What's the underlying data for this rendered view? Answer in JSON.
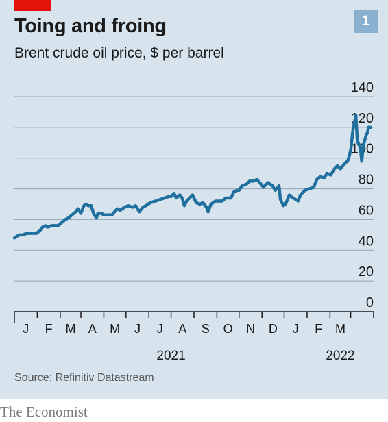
{
  "header": {
    "title": "Toing and froing",
    "subtitle": "Brent crude oil price, $ per barrel",
    "chart_number": "1"
  },
  "footer": {
    "source": "Source: Refinitiv Datastream",
    "brand": "The Economist"
  },
  "colors": {
    "background": "#d7e4ee",
    "line": "#1f6f9f",
    "grid": "#8fa5b5",
    "accent_red": "#e3120b",
    "badge": "#89b1cf"
  },
  "chart_data": {
    "type": "line",
    "title": "Toing and froing",
    "subtitle": "Brent crude oil price, $ per barrel",
    "xlabel": "",
    "ylabel": "",
    "ylim": [
      0,
      140
    ],
    "yticks": [
      0,
      20,
      40,
      60,
      80,
      100,
      120,
      140
    ],
    "y_axis_position": "right",
    "grid": true,
    "x_range": [
      "2020-12-01",
      "2022-04-01"
    ],
    "month_ticks": [
      "2020-12-01",
      "2021-01-01",
      "2021-02-01",
      "2021-03-01",
      "2021-04-01",
      "2021-05-01",
      "2021-06-01",
      "2021-07-01",
      "2021-08-01",
      "2021-09-01",
      "2021-10-01",
      "2021-11-01",
      "2021-12-01",
      "2022-01-01",
      "2022-02-01",
      "2022-03-01",
      "2022-04-01"
    ],
    "month_labels": [
      "J",
      "F",
      "M",
      "A",
      "M",
      "J",
      "J",
      "A",
      "S",
      "O",
      "N",
      "D",
      "J",
      "F",
      "M"
    ],
    "year_labels": [
      {
        "label": "2021",
        "date": "2021-07-01"
      },
      {
        "label": "2022",
        "date": "2022-02-15"
      }
    ],
    "series": [
      {
        "values": [
          [
            "2020-12-01",
            48
          ],
          [
            "2020-12-04",
            49
          ],
          [
            "2020-12-08",
            50
          ],
          [
            "2020-12-12",
            50
          ],
          [
            "2020-12-18",
            51
          ],
          [
            "2020-12-24",
            51
          ],
          [
            "2020-12-31",
            51
          ],
          [
            "2021-01-05",
            53
          ],
          [
            "2021-01-08",
            55
          ],
          [
            "2021-01-12",
            56
          ],
          [
            "2021-01-15",
            55
          ],
          [
            "2021-01-20",
            56
          ],
          [
            "2021-01-25",
            56
          ],
          [
            "2021-01-29",
            56
          ],
          [
            "2021-02-03",
            58
          ],
          [
            "2021-02-08",
            60
          ],
          [
            "2021-02-12",
            61
          ],
          [
            "2021-02-17",
            63
          ],
          [
            "2021-02-22",
            65
          ],
          [
            "2021-02-25",
            67
          ],
          [
            "2021-03-01",
            64
          ],
          [
            "2021-03-05",
            69
          ],
          [
            "2021-03-08",
            70
          ],
          [
            "2021-03-11",
            69
          ],
          [
            "2021-03-15",
            69
          ],
          [
            "2021-03-18",
            64
          ],
          [
            "2021-03-22",
            61
          ],
          [
            "2021-03-24",
            64
          ],
          [
            "2021-03-29",
            64
          ],
          [
            "2021-04-01",
            63
          ],
          [
            "2021-04-06",
            63
          ],
          [
            "2021-04-12",
            63
          ],
          [
            "2021-04-19",
            67
          ],
          [
            "2021-04-23",
            66
          ],
          [
            "2021-04-29",
            68
          ],
          [
            "2021-05-04",
            69
          ],
          [
            "2021-05-10",
            68
          ],
          [
            "2021-05-14",
            69
          ],
          [
            "2021-05-19",
            65
          ],
          [
            "2021-05-24",
            68
          ],
          [
            "2021-05-28",
            69
          ],
          [
            "2021-06-03",
            71
          ],
          [
            "2021-06-10",
            72
          ],
          [
            "2021-06-16",
            73
          ],
          [
            "2021-06-22",
            74
          ],
          [
            "2021-06-28",
            75
          ],
          [
            "2021-07-01",
            75
          ],
          [
            "2021-07-05",
            77
          ],
          [
            "2021-07-08",
            74
          ],
          [
            "2021-07-13",
            76
          ],
          [
            "2021-07-16",
            74
          ],
          [
            "2021-07-19",
            69
          ],
          [
            "2021-07-22",
            72
          ],
          [
            "2021-07-26",
            74
          ],
          [
            "2021-07-30",
            76
          ],
          [
            "2021-08-04",
            71
          ],
          [
            "2021-08-09",
            70
          ],
          [
            "2021-08-13",
            71
          ],
          [
            "2021-08-18",
            68
          ],
          [
            "2021-08-20",
            65
          ],
          [
            "2021-08-24",
            70
          ],
          [
            "2021-08-30",
            72
          ],
          [
            "2021-09-03",
            72
          ],
          [
            "2021-09-08",
            72
          ],
          [
            "2021-09-13",
            74
          ],
          [
            "2021-09-20",
            74
          ],
          [
            "2021-09-24",
            78
          ],
          [
            "2021-09-28",
            79
          ],
          [
            "2021-10-01",
            79
          ],
          [
            "2021-10-05",
            82
          ],
          [
            "2021-10-11",
            83
          ],
          [
            "2021-10-15",
            85
          ],
          [
            "2021-10-20",
            85
          ],
          [
            "2021-10-25",
            86
          ],
          [
            "2021-10-29",
            84
          ],
          [
            "2021-11-03",
            81
          ],
          [
            "2021-11-09",
            84
          ],
          [
            "2021-11-15",
            82
          ],
          [
            "2021-11-19",
            79
          ],
          [
            "2021-11-24",
            82
          ],
          [
            "2021-11-26",
            73
          ],
          [
            "2021-11-30",
            69
          ],
          [
            "2021-12-03",
            70
          ],
          [
            "2021-12-08",
            76
          ],
          [
            "2021-12-13",
            74
          ],
          [
            "2021-12-17",
            73
          ],
          [
            "2021-12-20",
            72
          ],
          [
            "2021-12-23",
            76
          ],
          [
            "2021-12-29",
            79
          ],
          [
            "2022-01-04",
            80
          ],
          [
            "2022-01-10",
            81
          ],
          [
            "2022-01-14",
            86
          ],
          [
            "2022-01-19",
            88
          ],
          [
            "2022-01-24",
            87
          ],
          [
            "2022-01-28",
            90
          ],
          [
            "2022-02-02",
            89
          ],
          [
            "2022-02-07",
            93
          ],
          [
            "2022-02-11",
            95
          ],
          [
            "2022-02-15",
            93
          ],
          [
            "2022-02-22",
            97
          ],
          [
            "2022-02-25",
            98
          ],
          [
            "2022-03-01",
            105
          ],
          [
            "2022-03-04",
            118
          ],
          [
            "2022-03-08",
            128
          ],
          [
            "2022-03-10",
            111
          ],
          [
            "2022-03-14",
            107
          ],
          [
            "2022-03-16",
            98
          ],
          [
            "2022-03-18",
            108
          ],
          [
            "2022-03-22",
            115
          ],
          [
            "2022-03-24",
            117
          ],
          [
            "2022-03-25",
            120
          ],
          [
            "2022-03-28",
            120
          ]
        ]
      }
    ]
  }
}
